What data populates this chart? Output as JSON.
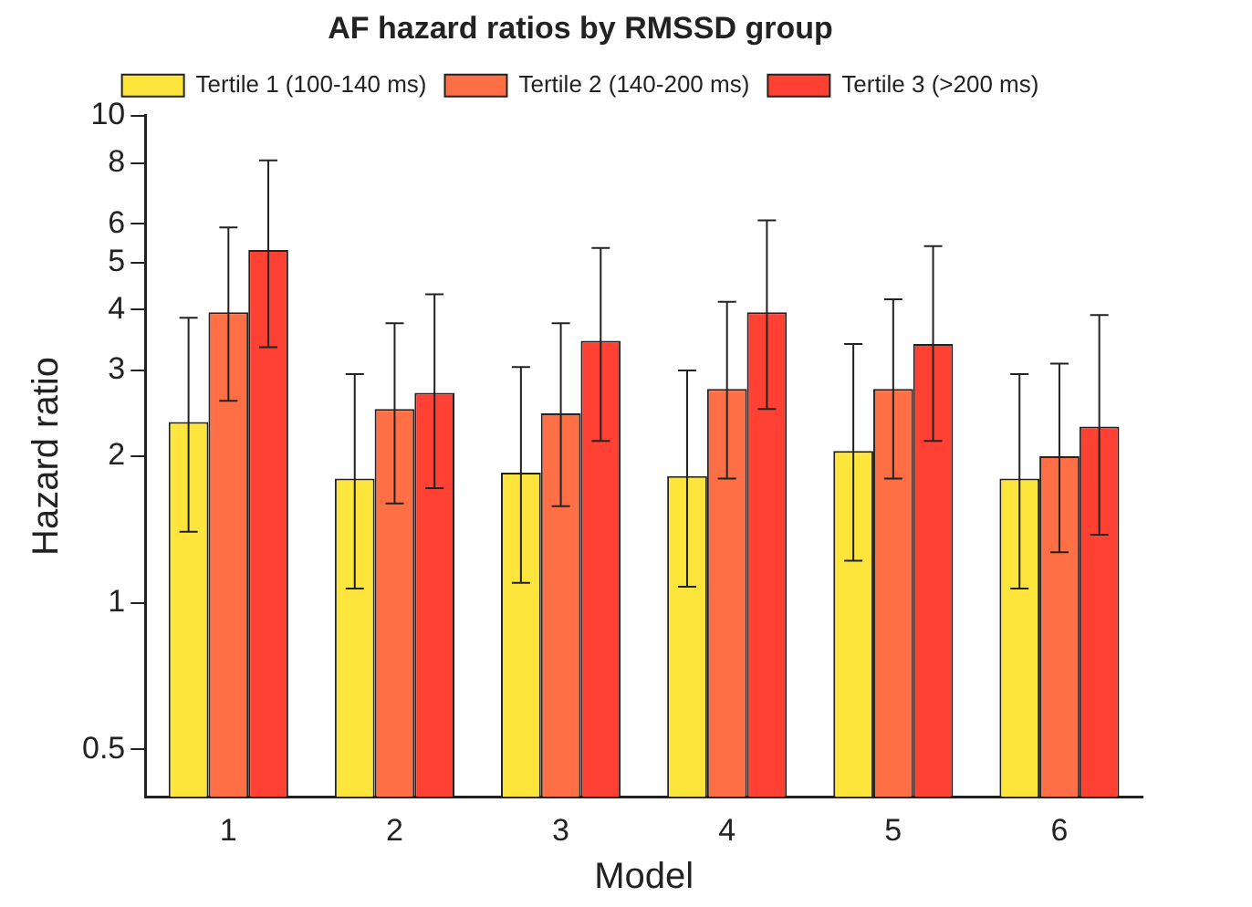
{
  "chart_data": {
    "type": "bar",
    "title": "AF hazard ratios by RMSSD group",
    "xlabel": "Model",
    "ylabel": "Hazard ratio",
    "categories": [
      "1",
      "2",
      "3",
      "4",
      "5",
      "6"
    ],
    "series": [
      {
        "name": "Tertile 1 (100-140 ms)",
        "color": "#fde53c",
        "values": [
          2.35,
          1.8,
          1.85,
          1.82,
          2.05,
          1.8
        ],
        "errors": [
          [
            1.4,
            3.85
          ],
          [
            1.07,
            2.95
          ],
          [
            1.1,
            3.05
          ],
          [
            1.08,
            3.0
          ],
          [
            1.22,
            3.4
          ],
          [
            1.07,
            2.95
          ]
        ]
      },
      {
        "name": "Tertile 2 (140-200 ms)",
        "color": "#fe6f45",
        "values": [
          3.95,
          2.5,
          2.45,
          2.75,
          2.75,
          2.0
        ],
        "errors": [
          [
            2.6,
            5.9
          ],
          [
            1.6,
            3.75
          ],
          [
            1.58,
            3.75
          ],
          [
            1.8,
            4.15
          ],
          [
            1.8,
            4.2
          ],
          [
            1.27,
            3.1
          ]
        ]
      },
      {
        "name": "Tertile 3 (>200 ms)",
        "color": "#fe4133",
        "values": [
          5.3,
          2.7,
          3.45,
          3.95,
          3.4,
          2.3
        ],
        "errors": [
          [
            3.35,
            8.1
          ],
          [
            1.72,
            4.3
          ],
          [
            2.15,
            5.35
          ],
          [
            2.5,
            6.1
          ],
          [
            2.15,
            5.4
          ],
          [
            1.38,
            3.9
          ]
        ]
      }
    ],
    "log": true,
    "ylim": [
      0.4,
      10
    ],
    "yticks": [
      0.5,
      1,
      2,
      3,
      4,
      5,
      6,
      8,
      10
    ],
    "grid": false,
    "legend": "top"
  }
}
